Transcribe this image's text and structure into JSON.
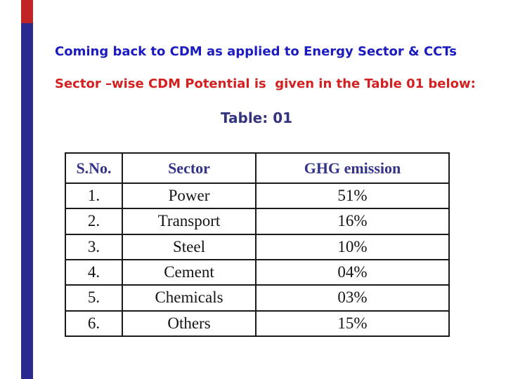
{
  "headings": {
    "line1": {
      "text": "Coming back to CDM as applied to Energy Sector & CCTs"
    },
    "line2": {
      "text": "Sector –wise CDM Potential is  given in the Table 01 below:"
    }
  },
  "table": {
    "caption": "Table: 01",
    "columns": [
      "S.No.",
      "Sector",
      "GHG emission"
    ],
    "rows": [
      [
        "1.",
        "Power",
        "51%"
      ],
      [
        "2.",
        "Transport",
        "16%"
      ],
      [
        "3.",
        "Steel",
        "10%"
      ],
      [
        "4.",
        "Cement",
        "04%"
      ],
      [
        "5.",
        "Chemicals",
        "03%"
      ],
      [
        "6.",
        "Others",
        "15%"
      ]
    ]
  },
  "colors": {
    "heading1": "#1b1bc0",
    "heading2": "#d32020",
    "caption": "#333380",
    "table_header": "#333388",
    "data_text": "#141414",
    "border": "#1b1b1b",
    "accent_navy": "#2a2a8e",
    "accent_red": "#c22424"
  }
}
